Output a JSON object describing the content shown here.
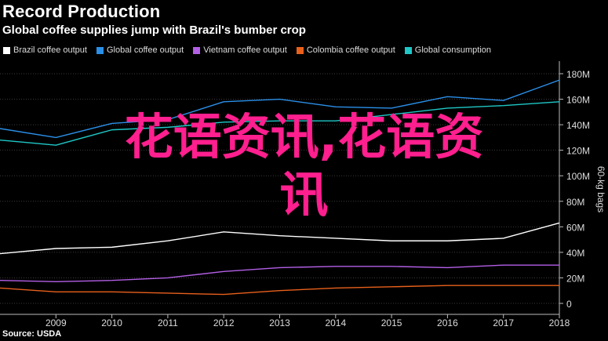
{
  "header": {
    "title": "Record Production",
    "subtitle": "Global coffee supplies jump with Brazil's bumber crop"
  },
  "source": "Source: USDA",
  "watermark": {
    "line1": "花语资讯,花语资",
    "line2": "讯"
  },
  "chart_data": {
    "type": "line",
    "x": [
      2008,
      2009,
      2010,
      2011,
      2012,
      2013,
      2014,
      2015,
      2016,
      2017,
      2018
    ],
    "xlim": [
      2008,
      2018
    ],
    "x_tick_labels": [
      "2009",
      "2010",
      "2011",
      "2012",
      "2013",
      "2014",
      "2015",
      "2016",
      "2017",
      "2018"
    ],
    "ylim": [
      0,
      190
    ],
    "y_ticks": [
      0,
      20,
      40,
      60,
      80,
      100,
      120,
      140,
      160,
      180
    ],
    "y_tick_labels": [
      "0",
      "20M",
      "40M",
      "60M",
      "80M",
      "100M",
      "120M",
      "140M",
      "160M",
      "180M"
    ],
    "ylabel": "60-kg bags",
    "grid": true,
    "legend_position": "top-left",
    "series": [
      {
        "name": "Brazil coffee output",
        "color": "#ffffff",
        "values": [
          39,
          43,
          44,
          49,
          56,
          53,
          51,
          49,
          49,
          51,
          63
        ]
      },
      {
        "name": "Global coffee output",
        "color": "#2b8fe8",
        "values": [
          137,
          130,
          141,
          144,
          158,
          160,
          154,
          153,
          162,
          159,
          175
        ]
      },
      {
        "name": "Vietnam coffee output",
        "color": "#b35fe6",
        "values": [
          18,
          17,
          18,
          20,
          25,
          28,
          29,
          29,
          28,
          30,
          30
        ]
      },
      {
        "name": "Colombia coffee output",
        "color": "#e8601c",
        "values": [
          12,
          9,
          9,
          8,
          7,
          10,
          12,
          13,
          14,
          14,
          14
        ]
      },
      {
        "name": "Global consumption",
        "color": "#1fc7c7",
        "values": [
          128,
          124,
          136,
          138,
          142,
          143,
          143,
          148,
          153,
          155,
          158
        ]
      }
    ]
  }
}
